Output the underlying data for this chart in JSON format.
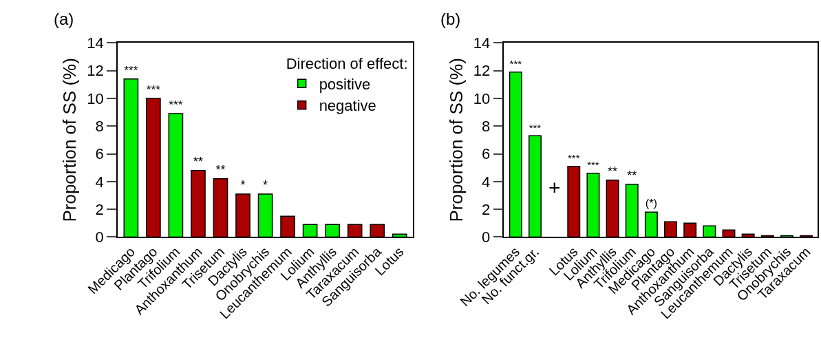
{
  "chart_data": [
    {
      "type": "bar",
      "title": "(a)",
      "ylabel": "Proportion of SS (%)",
      "legend_title": "Direction of effect:",
      "legend": "top right",
      "categories": [
        "Medicago",
        "Plantago",
        "Trifolium",
        "Anthoxanthum",
        "Trisetum",
        "Dactylis",
        "Onobrychis",
        "Leucanthemum",
        "Lolium",
        "Anthyllis",
        "Taraxacum",
        "Sanguisorba",
        "Lotus"
      ],
      "ylim": [
        0,
        14
      ],
      "yticks": [
        0,
        2,
        4,
        6,
        8,
        10,
        12,
        14
      ],
      "series": [
        {
          "name": "positive",
          "color": "#00ee00",
          "values": [
            11.4,
            null,
            8.9,
            null,
            null,
            null,
            3.1,
            null,
            0.9,
            0.9,
            null,
            null,
            0.2
          ],
          "value_labels": [
            "***",
            null,
            "***",
            null,
            null,
            null,
            "*",
            null,
            null,
            null,
            null,
            null,
            null
          ]
        },
        {
          "name": "negative",
          "color": "#aa0000",
          "values": [
            null,
            10.0,
            null,
            4.8,
            4.2,
            3.1,
            null,
            1.5,
            null,
            null,
            0.9,
            0.9,
            null
          ],
          "value_labels": [
            null,
            "***",
            null,
            "**",
            "**",
            "*",
            null,
            null,
            null,
            null,
            null,
            null,
            null
          ]
        }
      ]
    },
    {
      "type": "bar",
      "title": "(b)",
      "ylabel": "Proportion of SS (%)",
      "legend": false,
      "categories": [
        "No. legumes",
        "No. funct.gr.",
        null,
        "Lotus",
        "Lolium",
        "Anthyllis",
        "Trifolium",
        "Medicago",
        "Plantago",
        "Anthoxanthum",
        "Sanguisorba",
        "Leucanthemum",
        "Dactylis",
        "Trisetum",
        "Onobrychis",
        "Taraxacum"
      ],
      "ylim": [
        0,
        14
      ],
      "yticks": [
        0,
        2,
        4,
        6,
        8,
        10,
        12,
        14
      ],
      "annotations": [
        "+"
      ],
      "series": [
        {
          "color": "#00ee00",
          "values": [
            11.9,
            7.3,
            null,
            null,
            4.6,
            null,
            3.8,
            1.8,
            null,
            null,
            0.8,
            null,
            null,
            null,
            0.1,
            null
          ],
          "value_labels": [
            "***",
            "***",
            null,
            null,
            "***",
            null,
            "**",
            "(*)",
            null,
            null,
            null,
            null,
            null,
            null,
            null,
            null
          ]
        },
        {
          "color": "#aa0000",
          "values": [
            null,
            null,
            null,
            5.1,
            null,
            4.1,
            null,
            null,
            1.1,
            1.0,
            null,
            0.5,
            0.2,
            0.1,
            null,
            0.1
          ],
          "value_labels": [
            null,
            null,
            null,
            "***",
            null,
            "**",
            null,
            null,
            null,
            null,
            null,
            null,
            null,
            null,
            null,
            null
          ]
        }
      ]
    }
  ]
}
